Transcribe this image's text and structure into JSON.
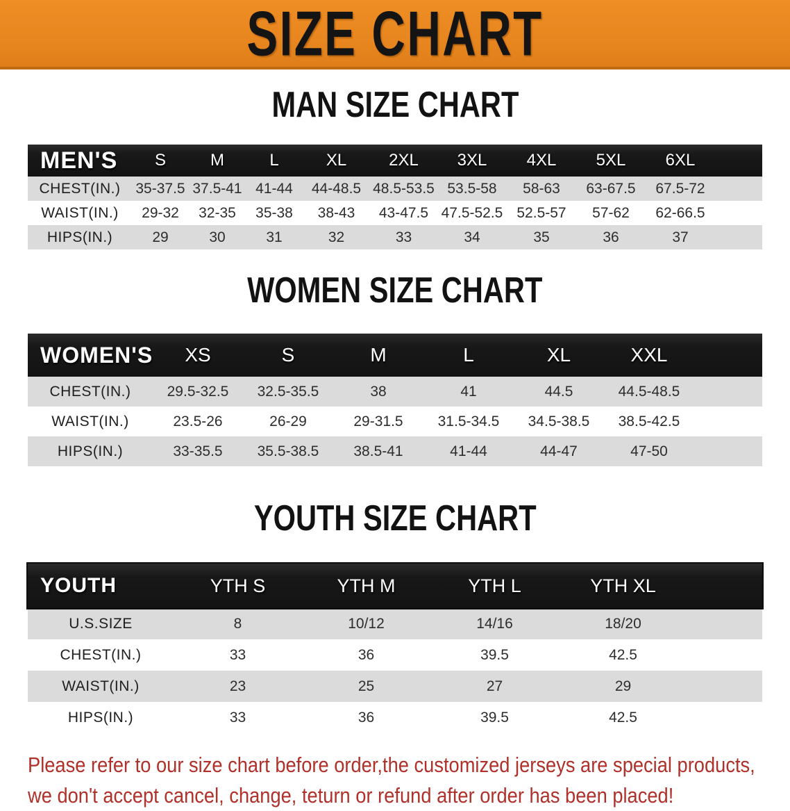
{
  "banner": {
    "title": "SIZE CHART"
  },
  "colors": {
    "banner_orange": "#E8861F",
    "table_header_black": "#1B1B1B",
    "row_gray": "#DBDBDB",
    "footer_red": "#B0302A"
  },
  "men": {
    "heading": "MAN SIZE CHART",
    "corner": "MEN'S",
    "sizes": [
      "S",
      "M",
      "L",
      "XL",
      "2XL",
      "3XL",
      "4XL",
      "5XL",
      "6XL"
    ],
    "rows": [
      {
        "label": "CHEST(IN.)",
        "values": [
          "35-37.5",
          "37.5-41",
          "41-44",
          "44-48.5",
          "48.5-53.5",
          "53.5-58",
          "58-63",
          "63-67.5",
          "67.5-72"
        ]
      },
      {
        "label": "WAIST(IN.)",
        "values": [
          "29-32",
          "32-35",
          "35-38",
          "38-43",
          "43-47.5",
          "47.5-52.5",
          "52.5-57",
          "57-62",
          "62-66.5"
        ]
      },
      {
        "label": "HIPS(IN.)",
        "values": [
          "29",
          "30",
          "31",
          "32",
          "33",
          "34",
          "35",
          "36",
          "37"
        ]
      }
    ]
  },
  "women": {
    "heading": "WOMEN SIZE CHART",
    "corner": "WOMEN'S",
    "sizes": [
      "XS",
      "S",
      "M",
      "L",
      "XL",
      "XXL"
    ],
    "rows": [
      {
        "label": "CHEST(IN.)",
        "values": [
          "29.5-32.5",
          "32.5-35.5",
          "38",
          "41",
          "44.5",
          "44.5-48.5"
        ]
      },
      {
        "label": "WAIST(IN.)",
        "values": [
          "23.5-26",
          "26-29",
          "29-31.5",
          "31.5-34.5",
          "34.5-38.5",
          "38.5-42.5"
        ]
      },
      {
        "label": "HIPS(IN.)",
        "values": [
          "33-35.5",
          "35.5-38.5",
          "38.5-41",
          "41-44",
          "44-47",
          "47-50"
        ]
      }
    ]
  },
  "youth": {
    "heading": "YOUTH SIZE CHART",
    "corner": "YOUTH",
    "sizes": [
      "YTH S",
      "YTH M",
      "YTH L",
      "YTH XL"
    ],
    "rows": [
      {
        "label": "U.S.SIZE",
        "values": [
          "8",
          "10/12",
          "14/16",
          "18/20"
        ]
      },
      {
        "label": "CHEST(IN.)",
        "values": [
          "33",
          "36",
          "39.5",
          "42.5"
        ]
      },
      {
        "label": "WAIST(IN.)",
        "values": [
          "23",
          "25",
          "27",
          "29"
        ]
      },
      {
        "label": "HIPS(IN.)",
        "values": [
          "33",
          "36",
          "39.5",
          "42.5"
        ]
      }
    ]
  },
  "footer": {
    "lines": [
      "Please refer to our size chart before order,the customized jerseys are special products,",
      "we don't accept cancel, change, teturn or refund after order has been placed!"
    ]
  }
}
